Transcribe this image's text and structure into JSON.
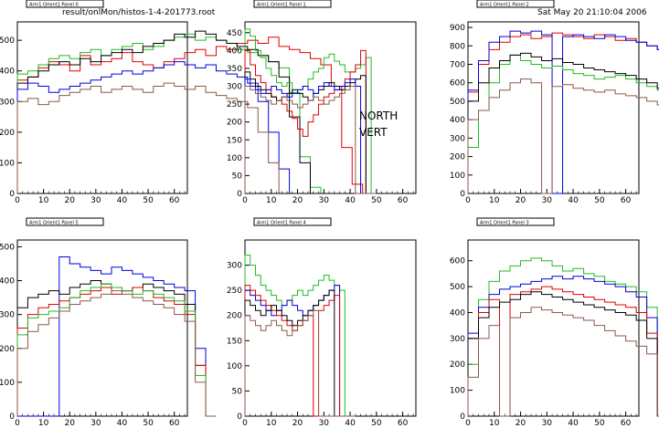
{
  "header": {
    "file": "result/onlMon/histos-1-4-201773.root",
    "date": "Sat May 20 21:10:04 2006"
  },
  "annotation": {
    "line1": "NORTH",
    "line2": "VERT"
  },
  "chart_data": [
    {
      "type": "line",
      "title": "Arm1 Orient1 Panel 0",
      "xlim": [
        0,
        65
      ],
      "ylim": [
        0,
        560
      ],
      "xticks": [
        0,
        10,
        20,
        30,
        40,
        50,
        60
      ],
      "yticks": [
        0,
        100,
        200,
        300,
        400,
        500
      ],
      "x_start": 0,
      "bins": 4,
      "series": [
        {
          "color": "#e00000",
          "values": [
            370,
            380,
            410,
            430,
            420,
            400,
            450,
            420,
            430,
            440,
            460,
            430,
            420,
            410,
            430,
            440,
            460,
            470,
            450,
            480,
            470,
            490,
            500,
            490,
            510,
            480,
            470,
            460,
            440,
            420,
            350,
            150,
            30,
            0
          ]
        },
        {
          "color": "#22bb22",
          "values": [
            390,
            400,
            420,
            440,
            450,
            440,
            460,
            470,
            450,
            470,
            480,
            490,
            470,
            480,
            500,
            510,
            520,
            500,
            510,
            500,
            490,
            470,
            460,
            450,
            430,
            410,
            330,
            120,
            20,
            0,
            0,
            0,
            0,
            0
          ]
        },
        {
          "color": "#000000",
          "values": [
            360,
            380,
            400,
            420,
            430,
            420,
            440,
            430,
            450,
            460,
            470,
            460,
            480,
            490,
            500,
            520,
            510,
            530,
            520,
            500,
            490,
            480,
            470,
            450,
            430,
            380,
            250,
            100,
            0,
            0,
            0,
            0,
            0,
            0
          ]
        },
        {
          "color": "#0000dd",
          "values": [
            340,
            360,
            350,
            330,
            340,
            350,
            360,
            370,
            380,
            390,
            400,
            390,
            400,
            410,
            420,
            430,
            420,
            410,
            420,
            400,
            390,
            380,
            360,
            300,
            200,
            80,
            0,
            0,
            0,
            0,
            0,
            0,
            0,
            0
          ]
        },
        {
          "color": "#8b5a4a",
          "values": [
            300,
            310,
            290,
            300,
            320,
            330,
            340,
            350,
            330,
            340,
            350,
            340,
            330,
            350,
            360,
            350,
            340,
            350,
            330,
            320,
            310,
            300,
            280,
            200,
            100,
            0,
            0,
            0,
            0,
            0,
            0,
            0,
            0,
            0
          ]
        }
      ]
    },
    {
      "type": "line",
      "title": "Arm1 Orient1 Panel 1",
      "xlim": [
        0,
        65
      ],
      "ylim": [
        0,
        480
      ],
      "xticks": [
        0,
        10,
        20,
        30,
        40,
        50,
        60
      ],
      "yticks": [
        0,
        50,
        100,
        150,
        200,
        250,
        300,
        350,
        400,
        450
      ],
      "x_start": 0,
      "bins": 2,
      "series": [
        {
          "color": "#22bb22",
          "values": [
            460,
            440,
            400,
            380,
            350,
            330,
            310,
            300,
            310,
            280,
            290,
            300,
            320,
            340,
            350,
            380,
            390,
            370,
            360,
            340,
            340,
            350,
            360,
            380,
            0
          ]
        },
        {
          "color": "#e00000",
          "values": [
            400,
            360,
            330,
            310,
            290,
            270,
            260,
            250,
            230,
            210,
            180,
            160,
            200,
            220,
            250,
            270,
            280,
            290,
            300,
            320,
            340,
            360,
            400,
            0,
            0
          ]
        },
        {
          "color": "#000000",
          "values": [
            340,
            320,
            300,
            290,
            280,
            270,
            260,
            270,
            280,
            290,
            280,
            270,
            260,
            280,
            290,
            300,
            310,
            300,
            290,
            300,
            310,
            320,
            330,
            0,
            0
          ]
        },
        {
          "color": "#0000dd",
          "values": [
            320,
            300,
            290,
            280,
            290,
            300,
            290,
            280,
            270,
            280,
            290,
            300,
            290,
            280,
            300,
            310,
            300,
            290,
            300,
            310,
            320,
            300,
            0,
            0,
            0
          ]
        },
        {
          "color": "#8b5a4a",
          "values": [
            300,
            290,
            280,
            270,
            260,
            250,
            260,
            270,
            260,
            250,
            240,
            250,
            260,
            270,
            260,
            250,
            260,
            270,
            280,
            290,
            300,
            0,
            0,
            0,
            0
          ]
        }
      ]
    },
    {
      "type": "line",
      "title": "Arm1 Orient1 Panel 2",
      "xlim": [
        0,
        65
      ],
      "ylim": [
        0,
        930
      ],
      "xticks": [
        0,
        10,
        20,
        30,
        40,
        50,
        60
      ],
      "yticks": [
        0,
        100,
        200,
        300,
        400,
        500,
        600,
        700,
        800,
        900
      ],
      "x_start": 0,
      "bins": 4,
      "series": [
        {
          "color": "#e00000",
          "values": [
            550,
            700,
            780,
            820,
            850,
            860,
            840,
            850,
            870,
            860,
            850,
            840,
            860,
            850,
            830,
            840,
            820,
            800,
            780,
            760,
            700,
            500,
            0
          ]
        },
        {
          "color": "#0000dd",
          "values": [
            560,
            720,
            820,
            850,
            880,
            870,
            880,
            860,
            0,
            850,
            860,
            850,
            840,
            860,
            850,
            830,
            820,
            800,
            780,
            760,
            720,
            0,
            0
          ]
        },
        {
          "color": "#22bb22",
          "values": [
            250,
            450,
            600,
            700,
            750,
            720,
            700,
            680,
            690,
            670,
            650,
            640,
            620,
            630,
            640,
            620,
            600,
            580,
            560,
            520,
            480,
            0,
            0
          ]
        },
        {
          "color": "#000000",
          "values": [
            500,
            600,
            680,
            720,
            750,
            760,
            740,
            720,
            730,
            710,
            700,
            680,
            670,
            660,
            650,
            640,
            620,
            600,
            570,
            540,
            500,
            0,
            0
          ]
        },
        {
          "color": "#8b5a4a",
          "values": [
            400,
            450,
            520,
            560,
            600,
            620,
            600,
            0,
            580,
            590,
            570,
            560,
            550,
            560,
            540,
            530,
            520,
            500,
            480,
            460,
            440,
            0,
            0
          ]
        }
      ]
    },
    {
      "type": "line",
      "title": "Arm1 Orient1 Panel 5",
      "xlim": [
        0,
        65
      ],
      "ylim": [
        0,
        520
      ],
      "xticks": [
        0,
        10,
        20,
        30,
        40,
        50,
        60
      ],
      "yticks": [
        0,
        100,
        200,
        300,
        400,
        500
      ],
      "x_start": 0,
      "bins": 4,
      "series": [
        {
          "color": "#0000dd",
          "values": [
            0,
            0,
            0,
            0,
            470,
            450,
            440,
            430,
            420,
            440,
            430,
            420,
            410,
            400,
            390,
            380,
            370,
            200,
            0
          ]
        },
        {
          "color": "#000000",
          "values": [
            320,
            350,
            360,
            370,
            360,
            380,
            390,
            400,
            390,
            380,
            370,
            380,
            390,
            380,
            370,
            360,
            330,
            150,
            0
          ]
        },
        {
          "color": "#e00000",
          "values": [
            260,
            300,
            320,
            330,
            340,
            350,
            360,
            370,
            380,
            360,
            370,
            380,
            370,
            350,
            340,
            330,
            300,
            150,
            0
          ]
        },
        {
          "color": "#22bb22",
          "values": [
            240,
            290,
            300,
            310,
            320,
            350,
            370,
            380,
            390,
            380,
            370,
            360,
            370,
            360,
            350,
            340,
            310,
            120,
            0
          ]
        },
        {
          "color": "#8b5a4a",
          "values": [
            200,
            250,
            270,
            290,
            310,
            330,
            340,
            350,
            360,
            370,
            360,
            350,
            340,
            330,
            320,
            300,
            280,
            100,
            0
          ]
        }
      ]
    },
    {
      "type": "line",
      "title": "Arm1 Orient1 Panel 4",
      "xlim": [
        0,
        65
      ],
      "ylim": [
        0,
        350
      ],
      "xticks": [
        0,
        10,
        20,
        30,
        40,
        50,
        60
      ],
      "yticks": [
        0,
        50,
        100,
        150,
        200,
        250,
        300
      ],
      "x_start": 0,
      "bins": 2,
      "series": [
        {
          "color": "#22bb22",
          "values": [
            320,
            300,
            280,
            260,
            250,
            240,
            230,
            220,
            230,
            240,
            250,
            240,
            250,
            260,
            270,
            280,
            270,
            260,
            250,
            0,
            0
          ]
        },
        {
          "color": "#0000dd",
          "values": [
            250,
            240,
            230,
            220,
            210,
            200,
            210,
            220,
            230,
            220,
            210,
            200,
            210,
            220,
            230,
            240,
            250,
            260,
            0,
            0,
            0
          ]
        },
        {
          "color": "#e00000",
          "values": [
            260,
            250,
            240,
            230,
            220,
            210,
            200,
            190,
            180,
            170,
            180,
            190,
            200,
            0,
            210,
            220,
            230,
            240,
            0,
            0,
            0
          ]
        },
        {
          "color": "#000000",
          "values": [
            230,
            220,
            210,
            200,
            210,
            220,
            210,
            200,
            190,
            180,
            190,
            200,
            210,
            220,
            230,
            240,
            250,
            0,
            0,
            0,
            0
          ]
        },
        {
          "color": "#8b5a4a",
          "values": [
            200,
            190,
            180,
            170,
            180,
            190,
            180,
            170,
            160,
            170,
            180,
            190,
            200,
            210,
            0,
            0,
            0,
            0,
            0,
            0,
            0
          ]
        }
      ]
    },
    {
      "type": "line",
      "title": "Arm1 Orient1 Panel 3",
      "xlim": [
        0,
        65
      ],
      "ylim": [
        0,
        680
      ],
      "xticks": [
        0,
        10,
        20,
        30,
        40,
        50,
        60
      ],
      "yticks": [
        0,
        100,
        200,
        300,
        400,
        500,
        600
      ],
      "x_start": 0,
      "bins": 4,
      "series": [
        {
          "color": "#22bb22",
          "values": [
            200,
            450,
            520,
            560,
            580,
            600,
            610,
            600,
            580,
            560,
            570,
            550,
            540,
            520,
            510,
            500,
            480,
            420,
            0
          ]
        },
        {
          "color": "#0000dd",
          "values": [
            320,
            420,
            470,
            490,
            500,
            510,
            520,
            530,
            540,
            530,
            540,
            530,
            520,
            510,
            500,
            480,
            460,
            380,
            0
          ]
        },
        {
          "color": "#e00000",
          "values": [
            300,
            400,
            450,
            0,
            470,
            480,
            490,
            500,
            490,
            480,
            470,
            460,
            450,
            440,
            430,
            420,
            400,
            320,
            0
          ]
        },
        {
          "color": "#000000",
          "values": [
            300,
            380,
            420,
            440,
            450,
            470,
            480,
            470,
            460,
            450,
            440,
            430,
            420,
            410,
            400,
            390,
            370,
            300,
            0
          ]
        },
        {
          "color": "#8b5a4a",
          "values": [
            150,
            300,
            350,
            0,
            380,
            400,
            420,
            410,
            400,
            390,
            380,
            370,
            350,
            330,
            310,
            290,
            270,
            240,
            0
          ]
        }
      ]
    }
  ]
}
